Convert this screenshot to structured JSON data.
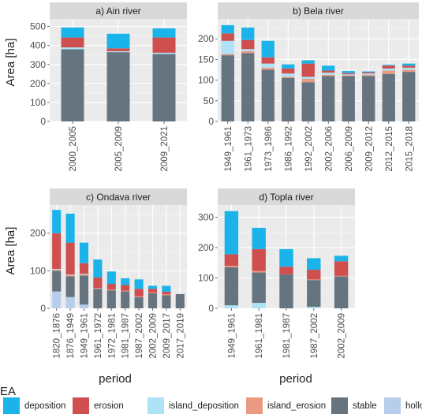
{
  "figure": {
    "ylabel": "Area [ha]",
    "xlabel": "period",
    "legend_title": "EA"
  },
  "legend": {
    "position": "bottom",
    "items": [
      {
        "key": "deposition",
        "label": "deposition",
        "color": "#1AB4EA"
      },
      {
        "key": "erosion",
        "label": "erosion",
        "color": "#CF4E4E"
      },
      {
        "key": "island_deposition",
        "label": "island_deposition",
        "color": "#AEE2F6"
      },
      {
        "key": "island_erosion",
        "label": "island_erosion",
        "color": "#E99A80"
      },
      {
        "key": "stable",
        "label": "stable",
        "color": "#667480"
      },
      {
        "key": "hollow",
        "label": "hollow",
        "color": "#B7CDEB"
      }
    ]
  },
  "chart_data": [
    {
      "type": "bar",
      "stacked": true,
      "title": "a) Ain river",
      "ylim": [
        0,
        540
      ],
      "yticks": [
        0,
        100,
        200,
        300,
        400,
        500
      ],
      "categories": [
        "2000_2005",
        "2005_2009",
        "2009_2021"
      ],
      "series": [
        {
          "name": "hollow",
          "values": [
            0,
            0,
            0
          ]
        },
        {
          "name": "stable",
          "values": [
            380,
            365,
            355
          ]
        },
        {
          "name": "island_erosion",
          "values": [
            0,
            0,
            0
          ]
        },
        {
          "name": "island_deposition",
          "values": [
            10,
            5,
            7
          ]
        },
        {
          "name": "erosion",
          "values": [
            52,
            15,
            80
          ]
        },
        {
          "name": "deposition",
          "values": [
            53,
            77,
            48
          ]
        }
      ]
    },
    {
      "type": "bar",
      "stacked": true,
      "title": "b) Bela river",
      "ylim": [
        0,
        248
      ],
      "yticks": [
        0,
        50,
        100,
        150,
        200
      ],
      "categories": [
        "1949_1961",
        "1961_1973",
        "1973_1986",
        "1986_1992",
        "1992_2002",
        "2002_2006",
        "2006_2009",
        "2009_2012",
        "2012_2015",
        "2015_2018"
      ],
      "series": [
        {
          "name": "hollow",
          "values": [
            0,
            0,
            0,
            0,
            0,
            0,
            0,
            0,
            0,
            0
          ]
        },
        {
          "name": "stable",
          "values": [
            160,
            165,
            125,
            105,
            95,
            110,
            110,
            110,
            115,
            120
          ]
        },
        {
          "name": "island_erosion",
          "values": [
            3,
            5,
            5,
            3,
            8,
            3,
            2,
            3,
            8,
            5
          ]
        },
        {
          "name": "island_deposition",
          "values": [
            32,
            5,
            10,
            8,
            5,
            5,
            2,
            3,
            5,
            5
          ]
        },
        {
          "name": "erosion",
          "values": [
            18,
            22,
            15,
            12,
            32,
            5,
            3,
            3,
            7,
            5
          ]
        },
        {
          "name": "deposition",
          "values": [
            20,
            30,
            40,
            10,
            8,
            12,
            5,
            2,
            2,
            5
          ]
        }
      ]
    },
    {
      "type": "bar",
      "stacked": true,
      "title": "c) Ondava river",
      "ylim": [
        0,
        275
      ],
      "yticks": [
        0,
        100,
        200
      ],
      "categories": [
        "1820_1876",
        "1876_1949",
        "1949_1961",
        "1961_1972",
        "1972_1981",
        "1981_1987",
        "1987_2002",
        "2002_2009",
        "2009_2017",
        "2017_2019"
      ],
      "series": [
        {
          "name": "hollow",
          "values": [
            45,
            30,
            10,
            0,
            0,
            0,
            0,
            0,
            0,
            0
          ]
        },
        {
          "name": "stable",
          "values": [
            55,
            55,
            77,
            52,
            48,
            45,
            30,
            40,
            35,
            38
          ]
        },
        {
          "name": "island_erosion",
          "values": [
            3,
            3,
            3,
            2,
            2,
            2,
            2,
            2,
            2,
            0
          ]
        },
        {
          "name": "island_deposition",
          "values": [
            2,
            2,
            2,
            0,
            0,
            0,
            0,
            0,
            0,
            0
          ]
        },
        {
          "name": "erosion",
          "values": [
            95,
            85,
            28,
            28,
            15,
            15,
            20,
            10,
            7,
            0
          ]
        },
        {
          "name": "deposition",
          "values": [
            62,
            77,
            55,
            48,
            33,
            18,
            25,
            8,
            16,
            0
          ]
        }
      ]
    },
    {
      "type": "bar",
      "stacked": true,
      "title": "d) Topla river",
      "ylim": [
        0,
        340
      ],
      "yticks": [
        0,
        100,
        200,
        300
      ],
      "categories": [
        "1949_1961",
        "1961_1981",
        "1981_1987",
        "1987_2002",
        "2002_2009"
      ],
      "series": [
        {
          "name": "hollow",
          "values": [
            0,
            0,
            0,
            0,
            0
          ]
        },
        {
          "name": "island_deposition",
          "values": [
            10,
            18,
            0,
            5,
            0
          ]
        },
        {
          "name": "stable",
          "values": [
            125,
            100,
            112,
            88,
            105
          ]
        },
        {
          "name": "island_erosion",
          "values": [
            5,
            5,
            0,
            2,
            2
          ]
        },
        {
          "name": "erosion",
          "values": [
            38,
            72,
            25,
            32,
            48
          ]
        },
        {
          "name": "deposition",
          "values": [
            142,
            70,
            58,
            38,
            18
          ]
        }
      ]
    }
  ]
}
